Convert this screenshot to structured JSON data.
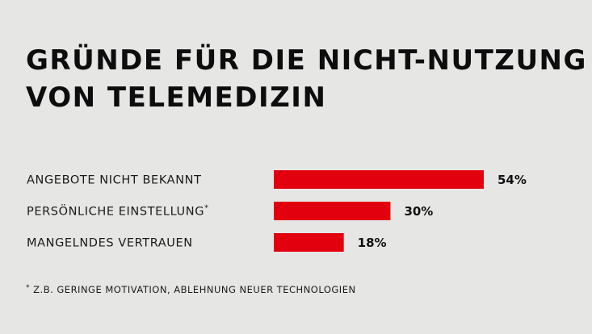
{
  "chart_data": {
    "type": "bar",
    "orientation": "horizontal",
    "title": [
      "GRÜNDE FÜR DIE NICHT-NUTZUNG",
      "VON TELEMEDIZIN"
    ],
    "categories": [
      "ANGEBOTE NICHT BEKANNT",
      "PERSÖNLICHE EINSTELLUNG",
      "MANGELNDES VERTRAUEN"
    ],
    "category_markers": [
      "",
      "*",
      ""
    ],
    "values": [
      54,
      30,
      18
    ],
    "value_labels": [
      "54%",
      "30%",
      "18%"
    ],
    "unit": "%",
    "bar_color": "#e2000f",
    "grid": false,
    "legend": "none",
    "footnote": {
      "marker": "*",
      "text": "Z.B. GERINGE MOTIVATION, ABLEHNUNG NEUER TECHNOLOGIEN"
    }
  },
  "colors": {
    "background": "#e6e6e5",
    "text": "#111111",
    "accent": "#e2000f"
  }
}
